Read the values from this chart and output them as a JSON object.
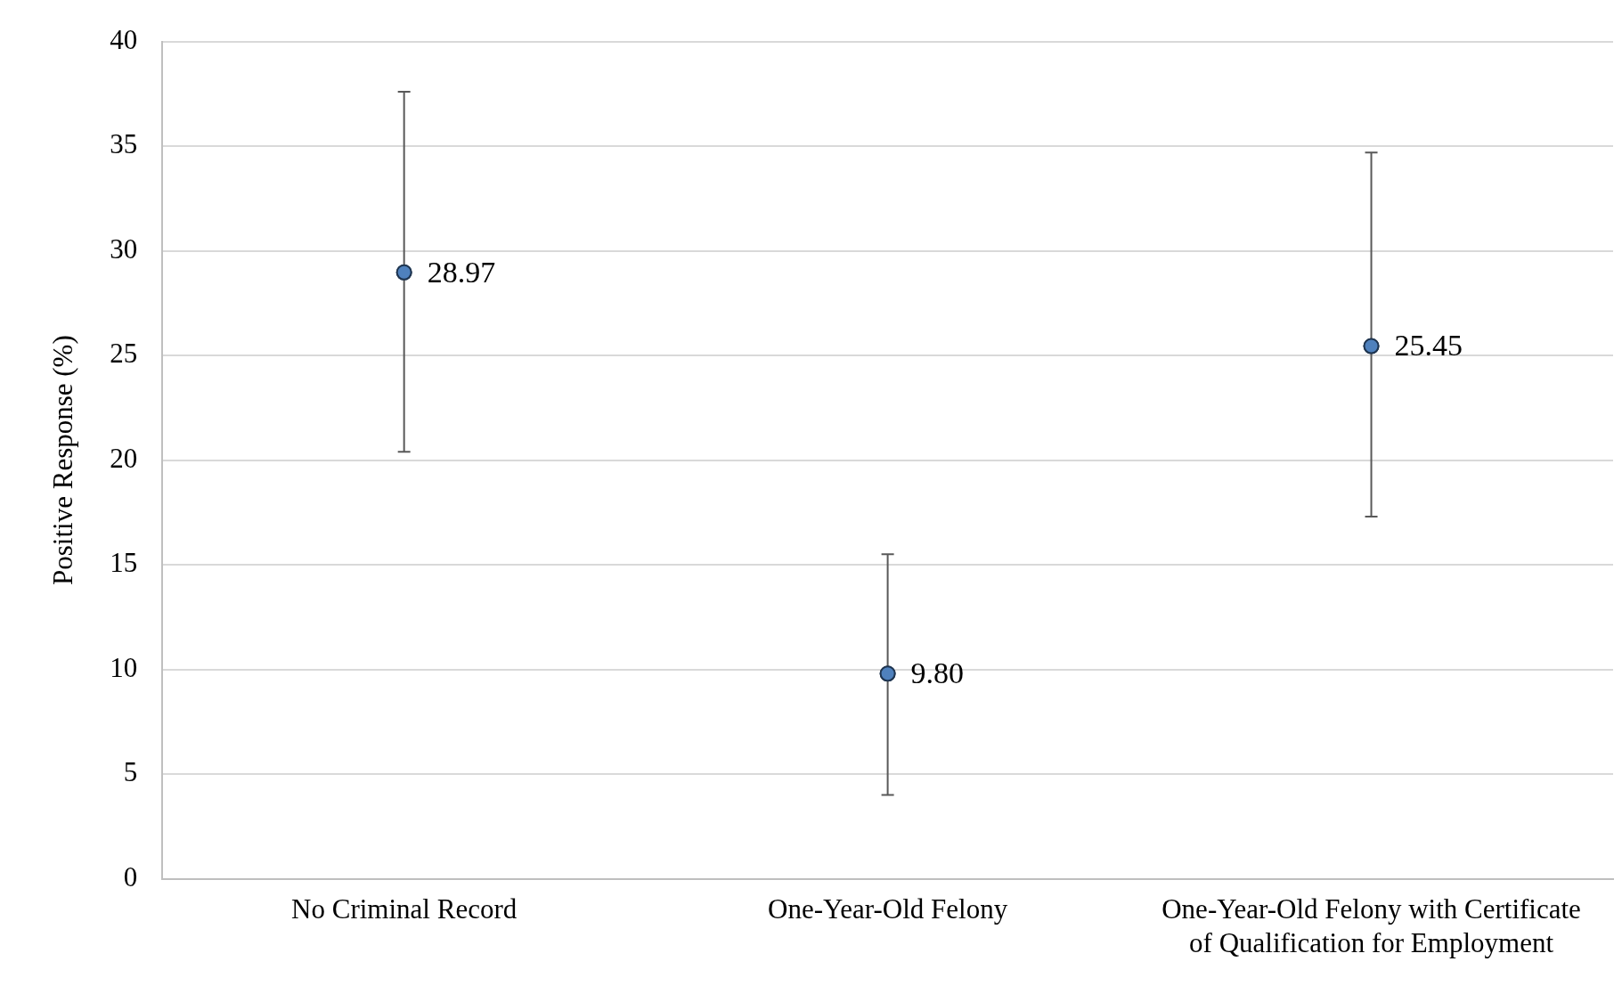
{
  "chart_data": {
    "type": "scatter",
    "ylabel": "Positive Response (%)",
    "categories": [
      "No Criminal Record",
      "One-Year-Old Felony",
      "One-Year-Old Felony with Certificate of Qualification for Employment"
    ],
    "values": [
      28.97,
      9.8,
      25.45
    ],
    "value_labels": [
      "28.97",
      "9.80",
      "25.45"
    ],
    "errors": [
      [
        20.4,
        37.6
      ],
      [
        4.0,
        15.5
      ],
      [
        17.3,
        34.7
      ]
    ],
    "color": "#4f81bd",
    "marker": "circle",
    "grid": "y",
    "legend": false,
    "ylim": [
      0,
      40
    ],
    "yticks": [
      0,
      5,
      10,
      15,
      20,
      25,
      30,
      35,
      40
    ]
  }
}
